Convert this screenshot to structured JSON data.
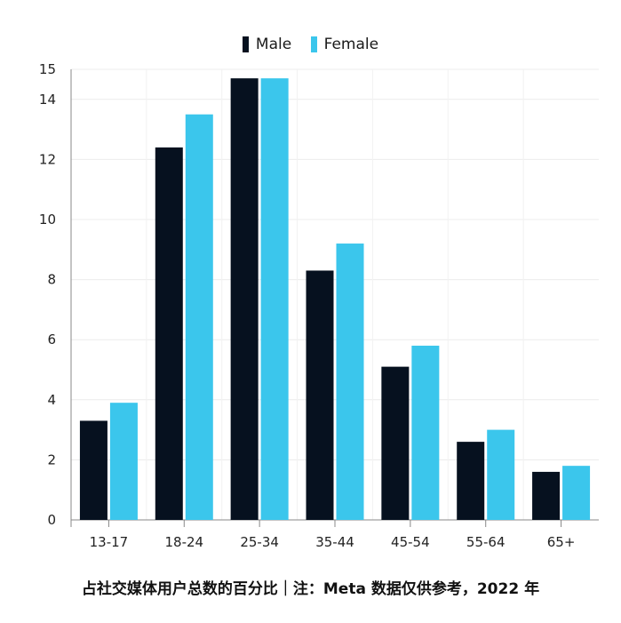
{
  "chart_data": {
    "type": "bar",
    "categories": [
      "13-17",
      "18-24",
      "25-34",
      "35-44",
      "45-54",
      "55-64",
      "65+"
    ],
    "series": [
      {
        "name": "Male",
        "color": "#06111f",
        "values": [
          3.3,
          12.4,
          14.7,
          8.3,
          5.1,
          2.6,
          1.6
        ]
      },
      {
        "name": "Female",
        "color": "#3bc6ec",
        "values": [
          3.9,
          13.5,
          14.7,
          9.2,
          5.8,
          3.0,
          1.8
        ]
      }
    ],
    "yticks": [
      0,
      2,
      4,
      6,
      8,
      10,
      12,
      14,
      15
    ],
    "ylim": [
      0,
      15
    ],
    "grid": true,
    "legend_position": "top-center",
    "caption": "占社交媒体用户总数的百分比｜注：Meta 数据仅供参考，2022 年"
  }
}
